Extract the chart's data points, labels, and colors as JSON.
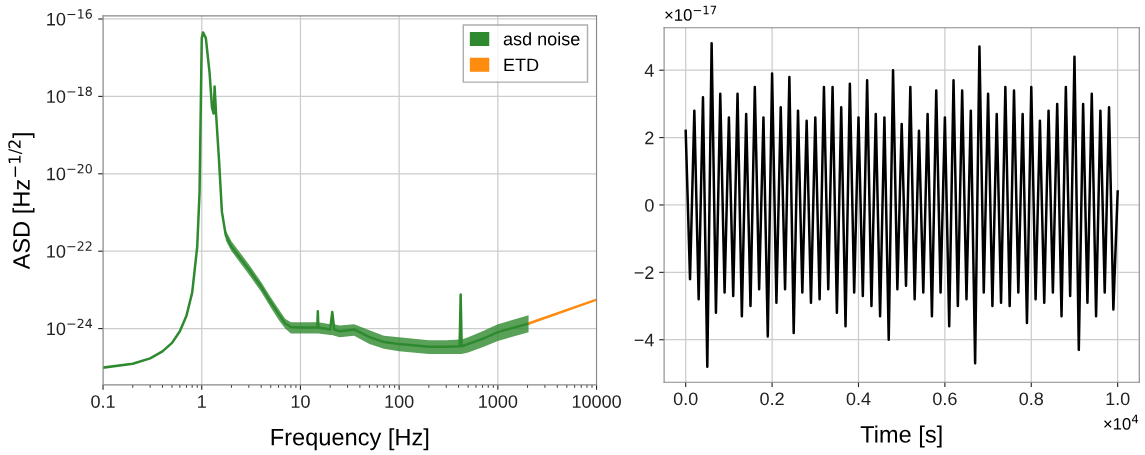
{
  "chart_data": [
    {
      "type": "line",
      "xlabel": "Frequency [Hz]",
      "ylabel": "ASD [Hz$^{−1/2}$]",
      "log": "xy",
      "grid": true,
      "legend": "top right",
      "xlim": [
        0.1,
        10000
      ],
      "xticks": [
        {
          "value": 0.1,
          "label": "0.1"
        },
        {
          "value": 1,
          "label": "1"
        },
        {
          "value": 10,
          "label": "10"
        },
        {
          "value": 100,
          "label": "100"
        },
        {
          "value": 1000,
          "label": "1000"
        },
        {
          "value": 10000,
          "label": "10000"
        }
      ],
      "ylim": [
        3.5e-26,
        1.2e-16
      ],
      "yticks": [
        {
          "value": 1e-24,
          "label": "10$^{−24}$"
        },
        {
          "value": 1e-22,
          "label": "10$^{−22}$"
        },
        {
          "value": 1e-20,
          "label": "10$^{−20}$"
        },
        {
          "value": 1e-18,
          "label": "10$^{−18}$"
        },
        {
          "value": 1e-16,
          "label": "10$^{−16}$"
        }
      ],
      "series": [
        {
          "name": "asd noise",
          "color": "#2f8a2f",
          "x": [
            0.1,
            0.2,
            0.3,
            0.4,
            0.5,
            0.6,
            0.7,
            0.8,
            0.9,
            0.95,
            1.0,
            1.03,
            1.1,
            1.2,
            1.27,
            1.32,
            1.35,
            1.4,
            1.5,
            1.6,
            1.75,
            2,
            3,
            4,
            5,
            6,
            7,
            8,
            10,
            14,
            14.8,
            15,
            15.2,
            20,
            21,
            22,
            25,
            35,
            50,
            70,
            100,
            200,
            300,
            410,
            420,
            430,
            500,
            700,
            1000,
            2048
          ],
          "values": [
            9.8e-26,
            1.23e-25,
            1.7e-25,
            2.57e-25,
            4.27e-25,
            8.5e-25,
            2.14e-24,
            8.5e-24,
            1.32e-22,
            3.3e-21,
            3.2e-17,
            4.5e-17,
            3.2e-17,
            4.1e-18,
            5.1e-19,
            3.6e-19,
            1.8e-18,
            3.2e-19,
            2e-20,
            1.05e-21,
            2.6e-22,
            1.3e-22,
            3.4e-23,
            1.2e-23,
            4.8e-24,
            2.4e-24,
            1.35e-24,
            1.1e-24,
            1.07e-24,
            1.07e-24,
            1.07e-24,
            2.8e-24,
            1.07e-24,
            9.5e-25,
            2.7e-24,
            9.5e-25,
            8.5e-25,
            9.5e-25,
            6e-25,
            4.5e-25,
            4e-25,
            3.4e-25,
            3.4e-25,
            3.5e-25,
            7.6e-24,
            3.5e-25,
            4e-25,
            5.4e-25,
            8.1e-25,
            1.35e-24
          ],
          "lower": [
            null,
            null,
            null,
            null,
            null,
            null,
            null,
            null,
            null,
            null,
            null,
            null,
            null,
            null,
            null,
            null,
            null,
            null,
            null,
            null,
            1.9e-22,
            1e-22,
            2.5e-23,
            9e-24,
            3.5e-24,
            1.7e-24,
            1e-24,
            7.5e-25,
            7.5e-25,
            7.5e-25,
            7.5e-25,
            7.5e-25,
            7.5e-25,
            6.8e-25,
            6.8e-25,
            6.5e-25,
            6e-25,
            6.5e-25,
            4e-25,
            3e-25,
            2.6e-25,
            2.2e-25,
            2.2e-25,
            2.2e-25,
            2.2e-25,
            2.2e-25,
            2.4e-25,
            3.3e-25,
            4.8e-25,
            8e-25
          ],
          "upper": [
            null,
            null,
            null,
            null,
            null,
            null,
            null,
            null,
            null,
            null,
            null,
            null,
            null,
            null,
            null,
            null,
            null,
            null,
            null,
            null,
            3.5e-22,
            1.8e-22,
            4.6e-23,
            1.6e-23,
            6.5e-24,
            3.2e-24,
            1.8e-24,
            1.45e-24,
            1.45e-24,
            1.45e-24,
            1.45e-24,
            2.8e-24,
            1.45e-24,
            1.3e-24,
            2.7e-24,
            1.3e-24,
            1.2e-24,
            1.3e-24,
            9e-25,
            6.5e-25,
            6e-25,
            5e-25,
            5e-25,
            5.2e-25,
            7.6e-24,
            5.2e-25,
            6e-25,
            8.5e-25,
            1.3e-24,
            2.2e-24
          ]
        },
        {
          "name": "ETD",
          "color": "#ff8c0f",
          "x": [
            2048,
            10000
          ],
          "values": [
            1.35e-24,
            5.6e-24
          ]
        }
      ]
    },
    {
      "type": "line",
      "xlabel": "Time [s]",
      "grid": true,
      "annotations": [
        "×10$^{−17}$",
        "×10$^{4}$"
      ],
      "xlim": [
        -0.05,
        1.05
      ],
      "xticks": [
        {
          "value": 0,
          "label": "0.0"
        },
        0.2,
        0.4,
        0.6,
        0.8,
        {
          "value": 1,
          "label": "1.0"
        }
      ],
      "ylim": [
        -5.26,
        5.26
      ],
      "yticks": [
        {
          "value": -4,
          "label": "−4"
        },
        {
          "value": -2,
          "label": "−2"
        },
        0,
        2,
        4
      ],
      "series": [
        {
          "color": "#000000",
          "x": [
            0,
            0.01,
            0.02,
            0.03,
            0.04,
            0.05,
            0.06,
            0.07,
            0.08,
            0.09,
            0.1,
            0.11,
            0.12,
            0.13,
            0.14,
            0.15,
            0.16,
            0.17,
            0.18,
            0.19,
            0.2,
            0.21,
            0.22,
            0.23,
            0.24,
            0.25,
            0.26,
            0.27,
            0.28,
            0.29,
            0.3,
            0.31,
            0.32,
            0.33,
            0.34,
            0.35,
            0.36,
            0.37,
            0.38,
            0.39,
            0.4,
            0.41,
            0.42,
            0.43,
            0.44,
            0.45,
            0.46,
            0.47,
            0.48,
            0.49,
            0.5,
            0.51,
            0.52,
            0.53,
            0.54,
            0.55,
            0.56,
            0.57,
            0.58,
            0.59,
            0.6,
            0.61,
            0.62,
            0.63,
            0.64,
            0.65,
            0.66,
            0.67,
            0.68,
            0.69,
            0.7,
            0.71,
            0.72,
            0.73,
            0.74,
            0.75,
            0.76,
            0.77,
            0.78,
            0.79,
            0.8,
            0.81,
            0.82,
            0.83,
            0.84,
            0.85,
            0.86,
            0.87,
            0.88,
            0.89,
            0.9,
            0.91,
            0.92,
            0.93,
            0.94,
            0.95,
            0.96,
            0.97,
            0.98,
            0.99,
            1.0
          ],
          "values": [
            2.2,
            -2.2,
            2.8,
            -2.8,
            3.2,
            -4.8,
            4.8,
            -3.2,
            3.3,
            -2.6,
            2.6,
            -2.7,
            3.3,
            -3.3,
            2.7,
            -3.0,
            3.5,
            -2.5,
            2.6,
            -3.9,
            3.9,
            -2.9,
            2.9,
            -2.5,
            3.8,
            -3.8,
            2.8,
            -2.6,
            2.5,
            -2.9,
            2.6,
            -2.8,
            3.5,
            -2.5,
            3.5,
            -3.2,
            2.9,
            -3.6,
            3.6,
            -2.6,
            2.6,
            -2.7,
            3.7,
            -3.0,
            2.7,
            -3.3,
            2.6,
            -4.0,
            4.0,
            -2.5,
            2.4,
            -2.4,
            3.5,
            -2.8,
            2.2,
            -2.6,
            2.7,
            -3.3,
            3.4,
            -2.6,
            2.6,
            -3.6,
            3.7,
            -3.0,
            3.4,
            -2.8,
            2.8,
            -4.7,
            4.7,
            -2.6,
            3.3,
            -3.0,
            2.7,
            -2.9,
            3.5,
            -3.0,
            3.4,
            -2.6,
            2.7,
            -3.5,
            3.5,
            -2.8,
            2.5,
            -2.9,
            2.8,
            -2.6,
            3.0,
            -3.3,
            3.5,
            -2.7,
            4.4,
            -4.3,
            3.0,
            -2.9,
            3.3,
            -3.3,
            2.8,
            -2.6,
            2.9,
            -3.1,
            0.4
          ]
        }
      ]
    }
  ]
}
